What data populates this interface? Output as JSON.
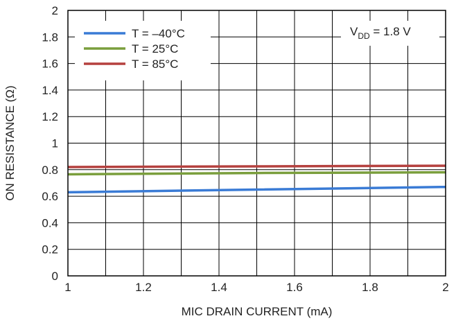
{
  "chart_data": {
    "type": "line",
    "title": "",
    "xlabel": "MIC DRAIN CURRENT (mA)",
    "ylabel": "ON RESISTANCE (Ω)",
    "xlim": [
      1,
      2
    ],
    "ylim": [
      0,
      2
    ],
    "x_ticks": [
      1,
      1.1,
      1.2,
      1.3,
      1.4,
      1.5,
      1.6,
      1.7,
      1.8,
      1.9,
      2
    ],
    "x_tick_labels": [
      "1",
      "1.2",
      "1.4",
      "1.6",
      "1.8",
      "2"
    ],
    "x_tick_label_values": [
      1,
      1.2,
      1.4,
      1.6,
      1.8,
      2
    ],
    "y_ticks": [
      0,
      0.2,
      0.4,
      0.6,
      0.8,
      1,
      1.2,
      1.4,
      1.6,
      1.8,
      2
    ],
    "y_tick_labels": [
      "0",
      "0.2",
      "0.4",
      "0.6",
      "0.8",
      "1",
      "1.2",
      "1.4",
      "1.6",
      "1.8",
      "2"
    ],
    "grid": true,
    "legend_position": "top-left",
    "series": [
      {
        "name": "T = –40°C",
        "color": "#3a7bd5",
        "x": [
          1,
          1.5,
          2
        ],
        "y": [
          0.63,
          0.65,
          0.67
        ]
      },
      {
        "name": "T = 25°C",
        "color": "#7a9e3c",
        "x": [
          1,
          1.5,
          2
        ],
        "y": [
          0.765,
          0.775,
          0.78
        ]
      },
      {
        "name": "T = 85°C",
        "color": "#b5413f",
        "x": [
          1,
          1.5,
          2
        ],
        "y": [
          0.82,
          0.825,
          0.83
        ]
      }
    ],
    "annotation": {
      "base": "V",
      "sub": "DD",
      "rest": " = 1.8 V"
    }
  }
}
